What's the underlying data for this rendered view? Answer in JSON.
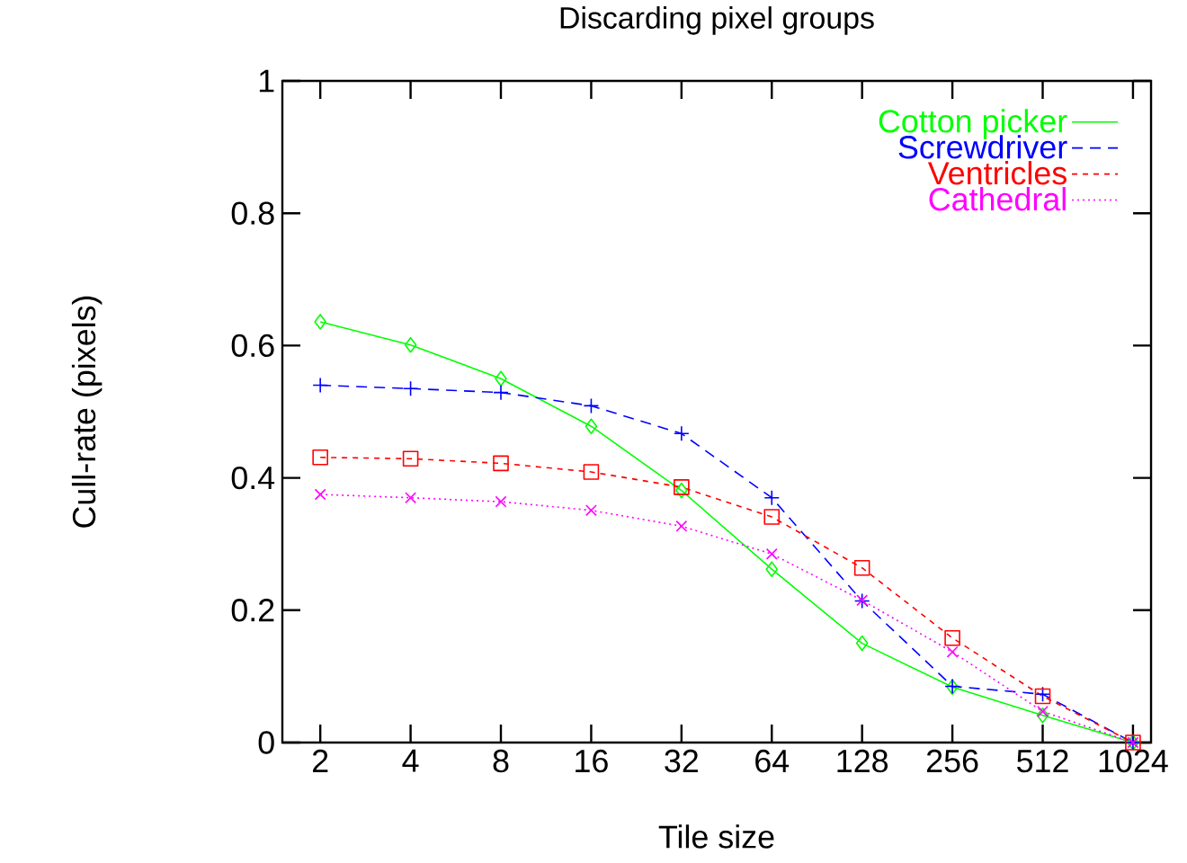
{
  "chart_data": {
    "type": "line",
    "title": "Discarding pixel groups",
    "xlabel": "Tile size",
    "ylabel": "Cull-rate (pixels)",
    "categories": [
      "2",
      "4",
      "8",
      "16",
      "32",
      "64",
      "128",
      "256",
      "512",
      "1024"
    ],
    "ylim": [
      0,
      1
    ],
    "yticks": [
      0,
      {
        "value": 0.2,
        "label": "0.2"
      },
      {
        "value": 0.4,
        "label": "0.4"
      },
      {
        "value": 0.6,
        "label": "0.6"
      },
      {
        "value": 0.8,
        "label": "0.8"
      },
      1
    ],
    "legend": "top right",
    "grid": false,
    "series": [
      {
        "name": "Cotton picker",
        "color": "#00ff00",
        "marker": "diamond",
        "line_style": "solid",
        "values": [
          0.636,
          0.601,
          0.55,
          0.478,
          0.381,
          0.262,
          0.15,
          0.084,
          0.041,
          0
        ]
      },
      {
        "name": "Screwdriver",
        "color": "#0000ff",
        "marker": "plus",
        "line_style": "dashed",
        "values": [
          0.54,
          0.535,
          0.529,
          0.509,
          0.467,
          0.37,
          0.214,
          0.085,
          0.073,
          0
        ]
      },
      {
        "name": "Ventricles",
        "color": "#ff0000",
        "marker": "square",
        "line_style": "densely dashed",
        "values": [
          0.431,
          0.429,
          0.422,
          0.409,
          0.386,
          0.341,
          0.264,
          0.158,
          0.07,
          0
        ]
      },
      {
        "name": "Cathedral",
        "color": "#ff00ff",
        "marker": "cross",
        "line_style": "dotted",
        "values": [
          0.375,
          0.37,
          0.364,
          0.351,
          0.327,
          0.285,
          0.215,
          0.137,
          0.047,
          0
        ]
      }
    ]
  }
}
